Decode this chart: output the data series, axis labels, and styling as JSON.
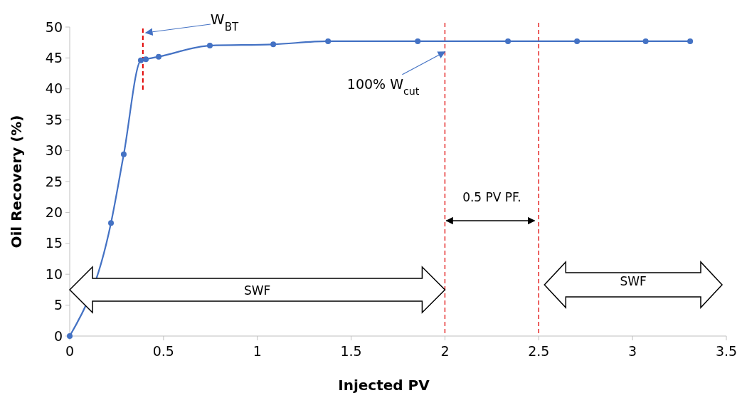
{
  "chart_data": {
    "type": "line",
    "xlabel": "Injected PV",
    "ylabel": "Oil Recovery (%)",
    "x": [
      0,
      0.22,
      0.288,
      0.379,
      0.406,
      0.474,
      0.747,
      1.085,
      1.377,
      1.855,
      2.336,
      2.704,
      3.07,
      3.307
    ],
    "series": [
      {
        "color": "#4472c4",
        "values": [
          0,
          18.3,
          29.4,
          44.6,
          44.8,
          45.2,
          47.0,
          47.2,
          47.7,
          47.7,
          47.7,
          47.7,
          47.7,
          47.7
        ]
      }
    ],
    "xlim": [
      0,
      3.5
    ],
    "xticks": [
      0,
      0.5,
      1,
      1.5,
      2,
      2.5,
      3,
      3.5
    ],
    "ylim": [
      0,
      50
    ],
    "yticks": [
      0,
      5,
      10,
      15,
      20,
      25,
      30,
      35,
      40,
      45,
      50
    ],
    "marker": "circle",
    "line_style": "solid",
    "ref_lines": [
      {
        "axis": "x",
        "value": 0.39,
        "label": "W$_{BT}$",
        "color": "#e00000",
        "line_style": "dashed"
      },
      {
        "axis": "x",
        "value": 2,
        "color": "#e00000",
        "line_style": "dashed"
      },
      {
        "axis": "x",
        "value": 2.5,
        "color": "#e00000",
        "line_style": "dashed"
      }
    ],
    "annotations": [
      {
        "text": "100% W$_{cut}$",
        "x": 2,
        "y": 46
      },
      "0.5 PV PF.",
      "SWF",
      "SWF"
    ]
  }
}
